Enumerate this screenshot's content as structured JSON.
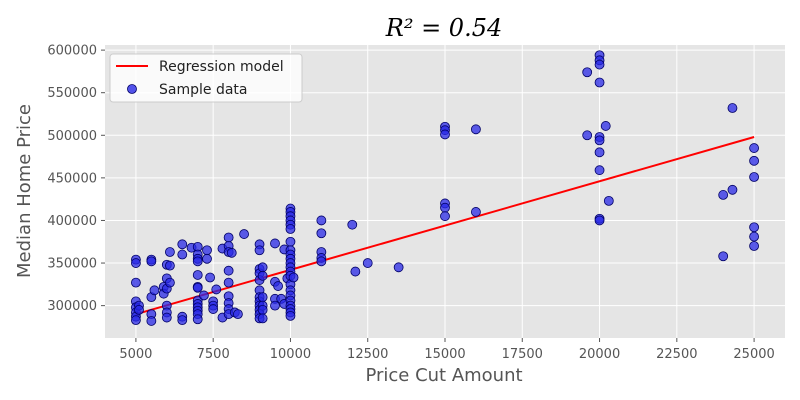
{
  "chart_data": {
    "type": "scatter",
    "title": "R² = 0.54",
    "xlabel": "Price Cut Amount",
    "ylabel": "Median Home Price",
    "xlim": [
      4000,
      26000
    ],
    "ylim": [
      262000,
      606000
    ],
    "xticks": [
      5000,
      7500,
      10000,
      12500,
      15000,
      17500,
      20000,
      22500,
      25000
    ],
    "xtick_labels": [
      "5000",
      "7500",
      "10000",
      "12500",
      "15000",
      "17500",
      "20000",
      "22500",
      "25000"
    ],
    "yticks": [
      300000,
      350000,
      400000,
      450000,
      500000,
      550000,
      600000
    ],
    "ytick_labels": [
      "300000",
      "350000",
      "400000",
      "450000",
      "500000",
      "550000",
      "600000"
    ],
    "grid": true,
    "legend_position": "upper-left",
    "colors": {
      "background": "#e5e5e5",
      "grid": "#ffffff",
      "line": "#ff0000",
      "point_fill": "#2828e6",
      "point_edge": "#000066"
    },
    "series": [
      {
        "name": "Regression model",
        "kind": "line",
        "x": [
          5000,
          25000
        ],
        "y": [
          290000,
          498000
        ]
      },
      {
        "name": "Sample data",
        "kind": "scatter",
        "points": [
          [
            5000,
            354000
          ],
          [
            5000,
            350000
          ],
          [
            5000,
            327000
          ],
          [
            5000,
            305000
          ],
          [
            5000,
            298000
          ],
          [
            5000,
            292000
          ],
          [
            5000,
            287000
          ],
          [
            5000,
            283000
          ],
          [
            5100,
            300000
          ],
          [
            5100,
            295000
          ],
          [
            5500,
            354000
          ],
          [
            5500,
            352000
          ],
          [
            5500,
            310000
          ],
          [
            5500,
            290000
          ],
          [
            5500,
            282000
          ],
          [
            5600,
            318000
          ],
          [
            5900,
            322000
          ],
          [
            5900,
            314000
          ],
          [
            6000,
            348000
          ],
          [
            6000,
            332000
          ],
          [
            6000,
            320000
          ],
          [
            6000,
            300000
          ],
          [
            6000,
            292000
          ],
          [
            6000,
            286000
          ],
          [
            6100,
            347000
          ],
          [
            6100,
            363000
          ],
          [
            6100,
            327000
          ],
          [
            6500,
            372000
          ],
          [
            6500,
            360000
          ],
          [
            6500,
            287000
          ],
          [
            6500,
            283000
          ],
          [
            6800,
            368000
          ],
          [
            7000,
            369000
          ],
          [
            7000,
            360000
          ],
          [
            7000,
            355000
          ],
          [
            7000,
            352000
          ],
          [
            7000,
            336000
          ],
          [
            7000,
            322000
          ],
          [
            7000,
            321000
          ],
          [
            7000,
            306000
          ],
          [
            7000,
            302000
          ],
          [
            7000,
            298000
          ],
          [
            7000,
            294000
          ],
          [
            7000,
            290000
          ],
          [
            7000,
            284000
          ],
          [
            7200,
            312000
          ],
          [
            7300,
            365000
          ],
          [
            7300,
            355000
          ],
          [
            7400,
            333000
          ],
          [
            7500,
            305000
          ],
          [
            7500,
            300000
          ],
          [
            7500,
            296000
          ],
          [
            7600,
            319000
          ],
          [
            7800,
            367000
          ],
          [
            7800,
            286000
          ],
          [
            8000,
            380000
          ],
          [
            8000,
            370000
          ],
          [
            8000,
            363000
          ],
          [
            8000,
            341000
          ],
          [
            8000,
            327000
          ],
          [
            8000,
            311000
          ],
          [
            8000,
            303000
          ],
          [
            8000,
            296000
          ],
          [
            8000,
            290000
          ],
          [
            8100,
            362000
          ],
          [
            8200,
            292000
          ],
          [
            8300,
            290000
          ],
          [
            8500,
            384000
          ],
          [
            9000,
            372000
          ],
          [
            9000,
            365000
          ],
          [
            9000,
            343000
          ],
          [
            9000,
            338000
          ],
          [
            9000,
            330000
          ],
          [
            9000,
            318000
          ],
          [
            9000,
            310000
          ],
          [
            9000,
            305000
          ],
          [
            9000,
            300000
          ],
          [
            9000,
            295000
          ],
          [
            9000,
            290000
          ],
          [
            9000,
            285000
          ],
          [
            9100,
            345000
          ],
          [
            9100,
            335000
          ],
          [
            9100,
            310000
          ],
          [
            9100,
            300000
          ],
          [
            9100,
            295000
          ],
          [
            9100,
            285000
          ],
          [
            9500,
            373000
          ],
          [
            9500,
            328000
          ],
          [
            9500,
            308000
          ],
          [
            9500,
            300000
          ],
          [
            9600,
            323000
          ],
          [
            9700,
            308000
          ],
          [
            9800,
            366000
          ],
          [
            9800,
            302000
          ],
          [
            9900,
            332000
          ],
          [
            10000,
            414000
          ],
          [
            10000,
            410000
          ],
          [
            10000,
            405000
          ],
          [
            10000,
            400000
          ],
          [
            10000,
            395000
          ],
          [
            10000,
            390000
          ],
          [
            10000,
            375000
          ],
          [
            10000,
            365000
          ],
          [
            10000,
            360000
          ],
          [
            10000,
            355000
          ],
          [
            10000,
            350000
          ],
          [
            10000,
            345000
          ],
          [
            10000,
            340000
          ],
          [
            10000,
            335000
          ],
          [
            10000,
            325000
          ],
          [
            10000,
            318000
          ],
          [
            10000,
            312000
          ],
          [
            10000,
            306000
          ],
          [
            10000,
            300000
          ],
          [
            10000,
            296000
          ],
          [
            10000,
            292000
          ],
          [
            10000,
            288000
          ],
          [
            10100,
            333000
          ],
          [
            11000,
            400000
          ],
          [
            11000,
            385000
          ],
          [
            11000,
            363000
          ],
          [
            11000,
            356000
          ],
          [
            11000,
            352000
          ],
          [
            12000,
            395000
          ],
          [
            12100,
            340000
          ],
          [
            12500,
            350000
          ],
          [
            13500,
            345000
          ],
          [
            15000,
            510000
          ],
          [
            15000,
            506000
          ],
          [
            15000,
            501000
          ],
          [
            15000,
            420000
          ],
          [
            15000,
            415000
          ],
          [
            15000,
            405000
          ],
          [
            16000,
            507000
          ],
          [
            16000,
            410000
          ],
          [
            19600,
            574000
          ],
          [
            19600,
            500000
          ],
          [
            20000,
            594000
          ],
          [
            20000,
            588000
          ],
          [
            20000,
            583000
          ],
          [
            20000,
            562000
          ],
          [
            20000,
            498000
          ],
          [
            20000,
            494000
          ],
          [
            20000,
            480000
          ],
          [
            20000,
            459000
          ],
          [
            20000,
            402000
          ],
          [
            20000,
            400000
          ],
          [
            20200,
            511000
          ],
          [
            20300,
            423000
          ],
          [
            24000,
            430000
          ],
          [
            24000,
            358000
          ],
          [
            24300,
            532000
          ],
          [
            24300,
            436000
          ],
          [
            25000,
            485000
          ],
          [
            25000,
            470000
          ],
          [
            25000,
            451000
          ],
          [
            25000,
            392000
          ],
          [
            25000,
            381000
          ],
          [
            25000,
            370000
          ]
        ]
      }
    ]
  }
}
